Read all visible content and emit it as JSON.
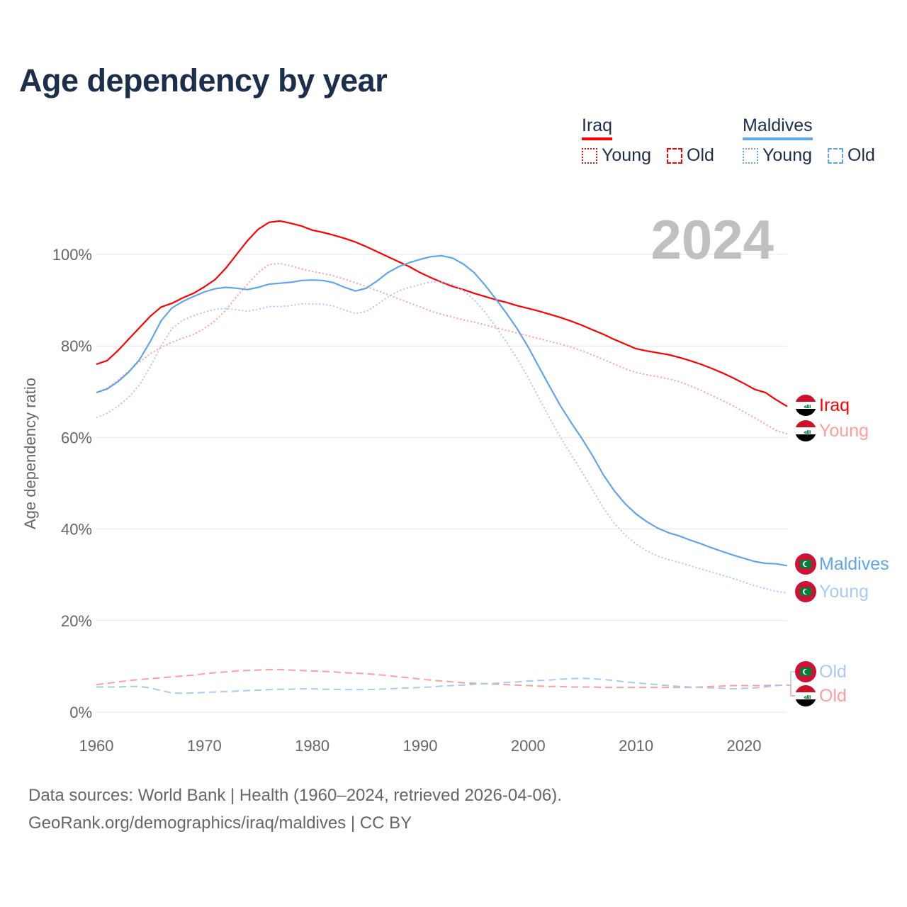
{
  "title": "Age dependency by year",
  "year_display": "2024",
  "legend": {
    "iraq": "Iraq",
    "maldives": "Maldives",
    "young": "Young",
    "old": "Old"
  },
  "end_labels": {
    "iraq_total": "Iraq",
    "iraq_young": "Young",
    "maldives_total": "Maldives",
    "maldives_young": "Young",
    "maldives_old": "Old",
    "iraq_old": "Old"
  },
  "source": {
    "line1": "Data sources: World Bank | Health (1960–2024, retrieved 2026-04-06).",
    "line2": "GeoRank.org/demographics/iraq/maldives | CC BY"
  },
  "colors": {
    "iraq": "#ff0000",
    "iraq_light": "#ff9e9e",
    "maldives": "#60a5ec",
    "maldives_light": "#a7cbf3",
    "title": "#1b2f4d"
  },
  "chart_data": {
    "type": "line",
    "title": "Age dependency by year",
    "xlabel": "",
    "ylabel": "Age dependency ratio",
    "xlim": [
      1960,
      2024
    ],
    "ylim": [
      0,
      110
    ],
    "xticks": [
      "1960",
      "1970",
      "1980",
      "1990",
      "2000",
      "2010",
      "2020"
    ],
    "yticks": [
      "0%",
      "20%",
      "40%",
      "60%",
      "80%",
      "100%"
    ],
    "grid": true,
    "series": [
      {
        "name": "Iraq",
        "style": "solid",
        "color": "#ff0000",
        "start": 1960,
        "values": [
          76.0,
          76.8,
          79,
          81.5,
          84,
          86.5,
          88.5,
          89.3,
          90.5,
          91.5,
          92.9,
          94.5,
          97,
          100,
          103,
          105.5,
          107,
          107.3,
          106.8,
          106.2,
          105.3,
          104.8,
          104.2,
          103.5,
          102.7,
          101.7,
          100.6,
          99.5,
          98.4,
          97.3,
          96,
          94.9,
          93.9,
          93,
          92.3,
          91.5,
          90.8,
          90.1,
          89.5,
          88.8,
          88.2,
          87.6,
          86.9,
          86.2,
          85.4,
          84.5,
          83.5,
          82.5,
          81.4,
          80.4,
          79.4,
          78.9,
          78.5,
          78.1,
          77.5,
          76.8,
          76,
          75.1,
          74.1,
          73,
          71.8,
          70.5,
          69.8,
          68.2,
          66.8
        ]
      },
      {
        "name": "Iraq Young",
        "style": "dotted",
        "color": "#ff9e9e",
        "start": 1960,
        "values": [
          69.8,
          70.8,
          72.5,
          74.5,
          76.5,
          78.3,
          79.7,
          80.8,
          81.7,
          82.5,
          83.8,
          85.5,
          87.8,
          90.8,
          93.5,
          96,
          97.8,
          98,
          97.5,
          96.8,
          96.3,
          95.8,
          95.3,
          94.6,
          93.8,
          93,
          92.1,
          91.2,
          90.3,
          89.4,
          88.5,
          87.6,
          86.9,
          86.3,
          85.7,
          85.2,
          84.6,
          84,
          83.4,
          82.8,
          82.2,
          81.6,
          81,
          80.4,
          79.7,
          78.9,
          78,
          77,
          76,
          75,
          74.2,
          73.7,
          73.3,
          72.8,
          72.2,
          71.3,
          70.3,
          69.2,
          68.1,
          66.9,
          65.6,
          64.3,
          62.9,
          61.5,
          60.8
        ]
      },
      {
        "name": "Iraq Old",
        "style": "dashed",
        "color": "#ff9e9e",
        "start": 1960,
        "values": [
          6.0,
          6.3,
          6.6,
          6.9,
          7.1,
          7.3,
          7.5,
          7.7,
          7.9,
          8.1,
          8.4,
          8.6,
          8.8,
          9.0,
          9.1,
          9.2,
          9.3,
          9.3,
          9.2,
          9.1,
          9.0,
          8.9,
          8.8,
          8.6,
          8.5,
          8.4,
          8.2,
          8.0,
          7.7,
          7.5,
          7.2,
          7.0,
          6.8,
          6.6,
          6.4,
          6.3,
          6.2,
          6.1,
          6.0,
          5.9,
          5.8,
          5.7,
          5.6,
          5.6,
          5.5,
          5.5,
          5.5,
          5.4,
          5.4,
          5.4,
          5.4,
          5.4,
          5.4,
          5.4,
          5.4,
          5.4,
          5.5,
          5.6,
          5.7,
          5.8,
          5.8,
          5.8,
          5.8,
          5.9,
          5.9
        ]
      },
      {
        "name": "Maldives",
        "style": "solid",
        "color": "#60a5ec",
        "start": 1960,
        "values": [
          69.8,
          70.6,
          72.2,
          74.3,
          77,
          81,
          85.5,
          88.3,
          89.7,
          90.8,
          91.8,
          92.5,
          92.8,
          92.6,
          92.3,
          92.8,
          93.5,
          93.7,
          93.9,
          94.3,
          94.4,
          94.3,
          93.8,
          92.8,
          92,
          92.6,
          94.2,
          96,
          97.3,
          98.2,
          98.9,
          99.5,
          99.7,
          99.2,
          97.9,
          96,
          93.3,
          90.3,
          87.1,
          83.7,
          79.8,
          75.4,
          71.1,
          66.9,
          63.2,
          59.7,
          55.9,
          51.7,
          48.3,
          45.5,
          43.3,
          41.6,
          40.2,
          39.2,
          38.5,
          37.6,
          36.8,
          35.9,
          35.1,
          34.3,
          33.6,
          32.9,
          32.5,
          32.4,
          32.0
        ]
      },
      {
        "name": "Maldives Young",
        "style": "dotted",
        "color": "#a7cbf3",
        "start": 1960,
        "values": [
          64.3,
          65.3,
          66.8,
          68.8,
          71.5,
          75.5,
          80,
          83.8,
          85.6,
          86.6,
          87.4,
          88,
          88.2,
          87.9,
          87.6,
          88,
          88.6,
          88.6,
          88.8,
          89.2,
          89.2,
          89.1,
          88.7,
          87.8,
          87.1,
          87.5,
          89,
          90.7,
          92,
          92.8,
          93.4,
          94,
          94,
          93.4,
          92.1,
          90.1,
          87.4,
          84.2,
          80.8,
          77.2,
          73.1,
          68.6,
          64.2,
          60,
          56.2,
          52.4,
          48.5,
          44.5,
          41.2,
          38.7,
          36.7,
          35.2,
          34.1,
          33.3,
          32.7,
          32,
          31.3,
          30.6,
          29.9,
          29.2,
          28.4,
          27.6,
          27,
          26.4,
          26.0
        ]
      },
      {
        "name": "Maldives Old",
        "style": "dashed",
        "color": "#a7cbf3",
        "start": 1960,
        "values": [
          5.5,
          5.5,
          5.5,
          5.6,
          5.6,
          5.3,
          4.7,
          4.2,
          4.1,
          4.2,
          4.3,
          4.4,
          4.5,
          4.6,
          4.7,
          4.8,
          4.9,
          5.0,
          5.0,
          5.1,
          5.1,
          5.0,
          5.0,
          4.9,
          4.9,
          4.9,
          5.0,
          5.1,
          5.2,
          5.3,
          5.4,
          5.5,
          5.7,
          5.8,
          5.9,
          6.1,
          6.2,
          6.3,
          6.5,
          6.6,
          6.8,
          6.9,
          7.0,
          7.2,
          7.3,
          7.4,
          7.3,
          7.1,
          6.9,
          6.6,
          6.4,
          6.2,
          6.0,
          5.8,
          5.6,
          5.5,
          5.4,
          5.3,
          5.2,
          5.1,
          5.2,
          5.3,
          5.5,
          5.8,
          6.0
        ]
      }
    ]
  }
}
